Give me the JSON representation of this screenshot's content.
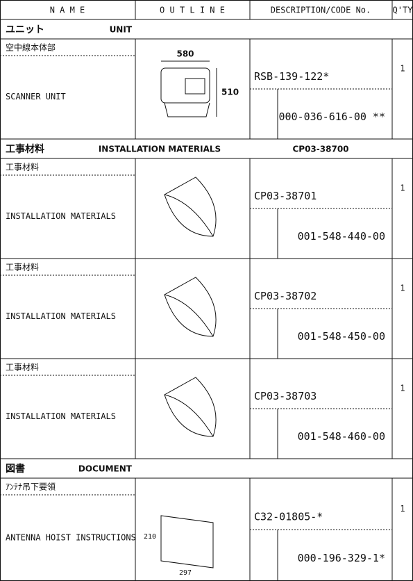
{
  "header": {
    "name": "N A M E",
    "outline": "O U T L I N E",
    "description": "DESCRIPTION/CODE No.",
    "qty": "Q'TY"
  },
  "sections": [
    {
      "title_jp": "ユニット",
      "title_en": "UNIT",
      "items": [
        {
          "name_jp": "空中線本体部",
          "name_en": "SCANNER UNIT",
          "outline_labels": [
            "580",
            "510"
          ],
          "type_code": "RSB-139-122*",
          "code": "000-036-616-00 **",
          "qty": "1"
        }
      ]
    },
    {
      "title_jp": "工事材料",
      "title_en": "INSTALLATION MATERIALS",
      "code": "CP03-38700",
      "items": [
        {
          "name_jp": "工事材料",
          "name_en": "INSTALLATION MATERIALS",
          "type_code": "CP03-38701",
          "code": "001-548-440-00",
          "qty": "1"
        },
        {
          "name_jp": "工事材料",
          "name_en": "INSTALLATION MATERIALS",
          "type_code": "CP03-38702",
          "code": "001-548-450-00",
          "qty": "1"
        },
        {
          "name_jp": "工事材料",
          "name_en": "INSTALLATION MATERIALS",
          "type_code": "CP03-38703",
          "code": "001-548-460-00",
          "qty": "1"
        }
      ]
    },
    {
      "title_jp": "図書",
      "title_en": "DOCUMENT",
      "items": [
        {
          "name_jp": "ｱﾝﾃﾅ吊下要領",
          "name_en": "ANTENNA HOIST INSTRUCTIONS",
          "outline_labels": [
            "210",
            "297"
          ],
          "type_code": "C32-01805-*",
          "code": "000-196-329-1*",
          "qty": "1"
        }
      ]
    }
  ]
}
